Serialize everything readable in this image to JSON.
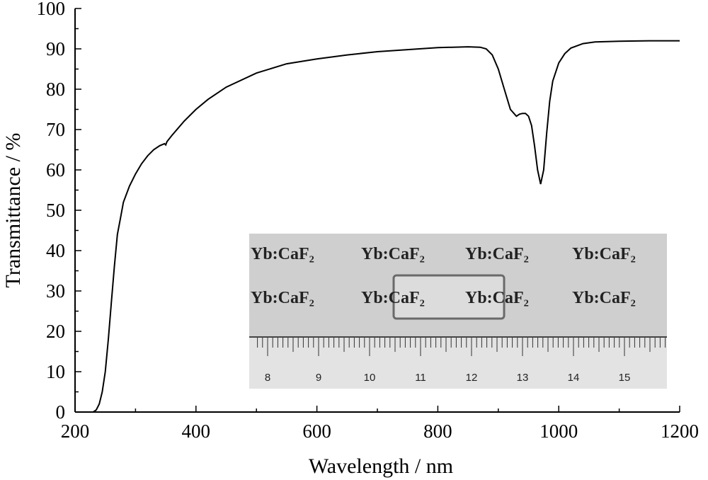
{
  "chart_data": {
    "type": "line",
    "title": "",
    "xlabel": "Wavelength / nm",
    "ylabel": "Transmittance / %",
    "xlim": [
      200,
      1200
    ],
    "ylim": [
      0,
      100
    ],
    "xticks": [
      200,
      400,
      600,
      800,
      1000,
      1200
    ],
    "yticks": [
      0,
      10,
      20,
      30,
      40,
      50,
      60,
      70,
      80,
      90,
      100
    ],
    "grid": false,
    "legend": "none",
    "line_color": "#000000",
    "series": [
      {
        "x": [
          230,
          235,
          240,
          245,
          250,
          255,
          260,
          265,
          270,
          275,
          280,
          290,
          300,
          310,
          320,
          330,
          340,
          348,
          350,
          352,
          360,
          380,
          400,
          420,
          450,
          500,
          550,
          600,
          650,
          700,
          750,
          800,
          850,
          870,
          880,
          890,
          900,
          910,
          920,
          930,
          935,
          940,
          945,
          950,
          955,
          960,
          965,
          970,
          975,
          980,
          985,
          990,
          1000,
          1010,
          1020,
          1040,
          1060,
          1080,
          1100,
          1150,
          1200
        ],
        "y": [
          0,
          0.5,
          2,
          5,
          10,
          18,
          27,
          36,
          44,
          48,
          52,
          56,
          59,
          61.5,
          63.5,
          65,
          66,
          66.5,
          66.2,
          67,
          68.5,
          72,
          75,
          77.5,
          80.5,
          84,
          86.3,
          87.5,
          88.5,
          89.3,
          89.8,
          90.3,
          90.5,
          90.4,
          90,
          88.5,
          85,
          80,
          75,
          73.3,
          73.8,
          74,
          74,
          73.3,
          71,
          66,
          60,
          56.5,
          60,
          69,
          77,
          82,
          86.5,
          88.8,
          90.2,
          91.3,
          91.7,
          91.8,
          91.9,
          92,
          92
        ]
      }
    ]
  },
  "inset": {
    "label_rows": [
      [
        "Yb:CaF₂",
        "Yb:CaF₂",
        "Yb:CaF₂",
        "Yb:CaF₂"
      ],
      [
        "Yb:CaF₂",
        "Yb:CaF₂",
        "Yb:CaF₂",
        "Yb:CaF₂"
      ]
    ],
    "ruler_numbers": [
      "8",
      "9",
      "10",
      "11",
      "12",
      "13",
      "14",
      "15"
    ]
  }
}
